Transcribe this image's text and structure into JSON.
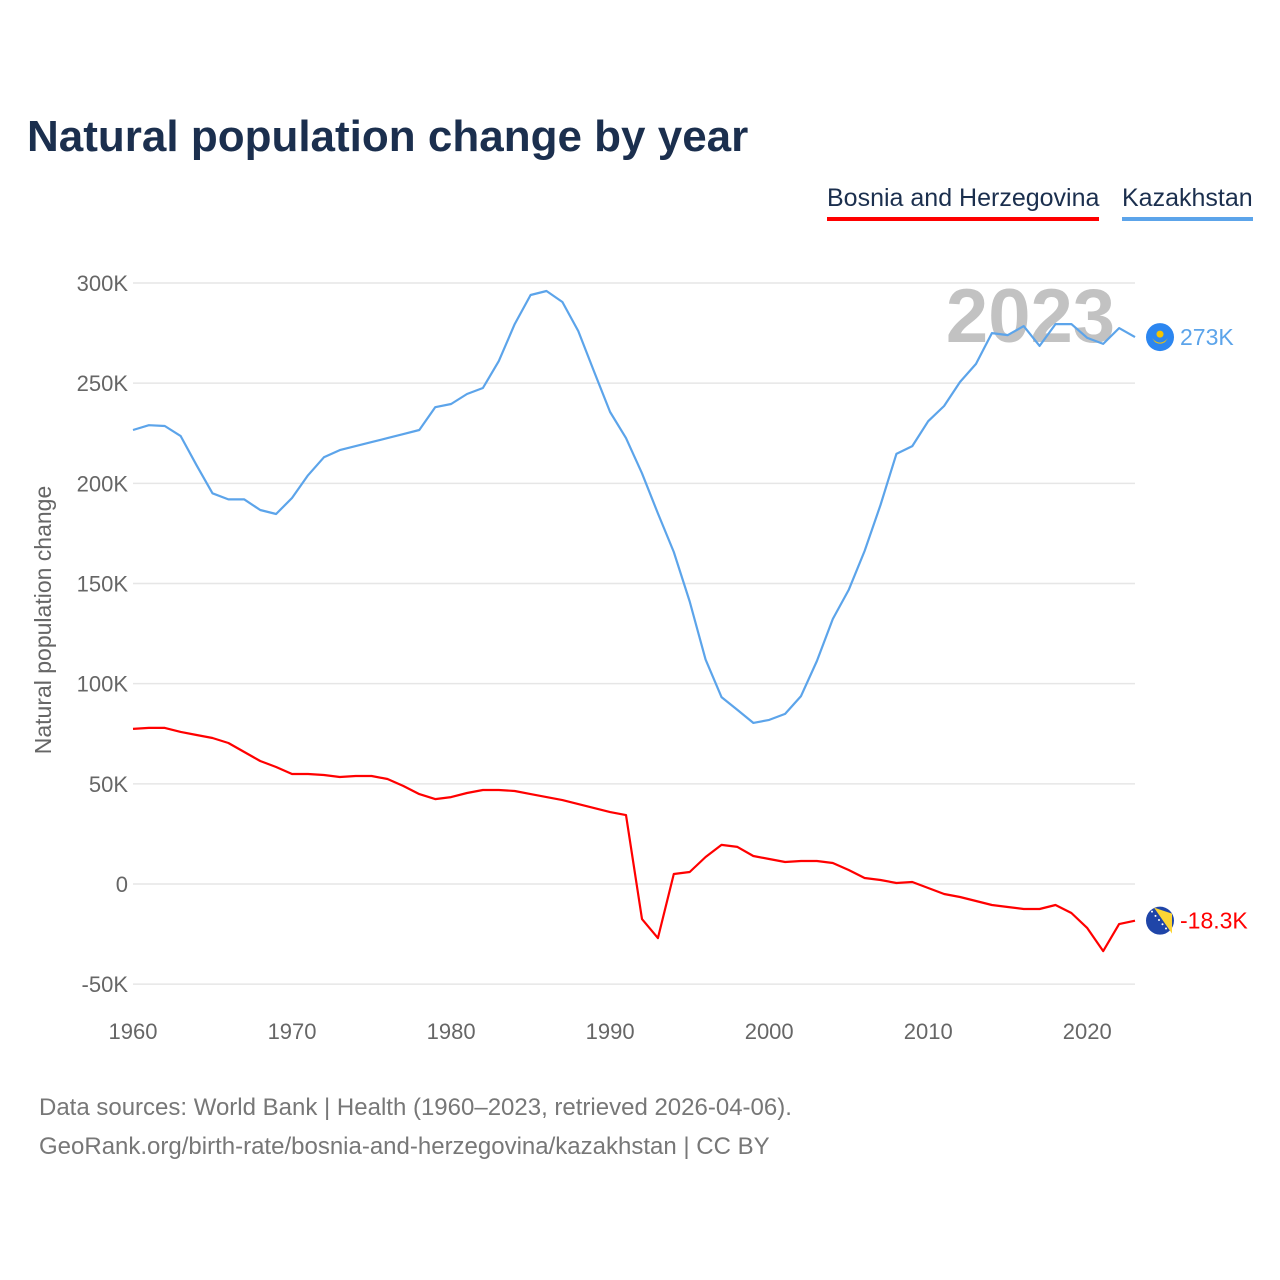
{
  "chart_data": {
    "type": "line",
    "title": "Natural population change by year",
    "xlabel": "",
    "ylabel": "Natural population change",
    "xlim": [
      1960,
      2023
    ],
    "ylim": [
      -50000,
      300000
    ],
    "yticks": [
      -50000,
      0,
      50000,
      100000,
      150000,
      200000,
      250000,
      300000
    ],
    "ytick_labels": [
      "-50K",
      "0",
      "50K",
      "100K",
      "150K",
      "200K",
      "250K",
      "300K"
    ],
    "xticks": [
      1960,
      1970,
      1980,
      1990,
      2000,
      2010,
      2020
    ],
    "xtick_labels": [
      "1960",
      "1970",
      "1980",
      "1990",
      "2000",
      "2010",
      "2020"
    ],
    "grid": true,
    "legend_position": "top-right",
    "year_watermark": "2023",
    "x": [
      1960,
      1961,
      1962,
      1963,
      1964,
      1965,
      1966,
      1967,
      1968,
      1969,
      1970,
      1971,
      1972,
      1973,
      1974,
      1975,
      1976,
      1977,
      1978,
      1979,
      1980,
      1981,
      1982,
      1983,
      1984,
      1985,
      1986,
      1987,
      1988,
      1989,
      1990,
      1991,
      1992,
      1993,
      1994,
      1995,
      1996,
      1997,
      1998,
      1999,
      2000,
      2001,
      2002,
      2003,
      2004,
      2005,
      2006,
      2007,
      2008,
      2009,
      2010,
      2011,
      2012,
      2013,
      2014,
      2015,
      2016,
      2017,
      2018,
      2019,
      2020,
      2021,
      2022,
      2023
    ],
    "series": [
      {
        "name": "Bosnia and Herzegovina",
        "color": "#ff0000",
        "end_label": "-18.3K",
        "flag": "bosnia-flag",
        "values": [
          77400,
          77900,
          77900,
          75900,
          74400,
          72900,
          70400,
          65900,
          61400,
          58400,
          54900,
          54900,
          54400,
          53400,
          53900,
          53900,
          52400,
          48900,
          44900,
          42400,
          43400,
          45400,
          46900,
          46900,
          46400,
          44900,
          43400,
          41900,
          39900,
          37900,
          35900,
          34400,
          -17500,
          -27000,
          5000,
          6000,
          13500,
          19500,
          18500,
          14000,
          12500,
          11000,
          11500,
          11500,
          10500,
          7000,
          3000,
          2000,
          500,
          1000,
          -2000,
          -5000,
          -6500,
          -8500,
          -10500,
          -11500,
          -12500,
          -12500,
          -10500,
          -14500,
          -22000,
          -33500,
          -20000,
          -18300
        ]
      },
      {
        "name": "Kazakhstan",
        "color": "#5ca4ea",
        "end_label": "273K",
        "flag": "kazakhstan-flag",
        "values": [
          226600,
          229000,
          228600,
          223600,
          209000,
          195000,
          192000,
          192000,
          186700,
          184700,
          192700,
          204000,
          213000,
          216600,
          218600,
          220600,
          222600,
          224600,
          226600,
          238000,
          239600,
          244600,
          247600,
          261000,
          279500,
          294000,
          296000,
          290500,
          276000,
          255600,
          235600,
          222600,
          205000,
          185000,
          165700,
          141000,
          112000,
          93300,
          86900,
          80400,
          81900,
          84900,
          93800,
          111300,
          132300,
          146800,
          166200,
          189200,
          214700,
          218600,
          231000,
          238600,
          250600,
          259600,
          275000,
          274000,
          278500,
          268600,
          279500,
          279500,
          272600,
          269600,
          277500,
          273000
        ]
      }
    ]
  },
  "source": {
    "line1": "Data sources: World Bank | Health (1960–2023, retrieved 2026-04-06).",
    "line2": "GeoRank.org/birth-rate/bosnia-and-herzegovina/kazakhstan | CC BY"
  }
}
